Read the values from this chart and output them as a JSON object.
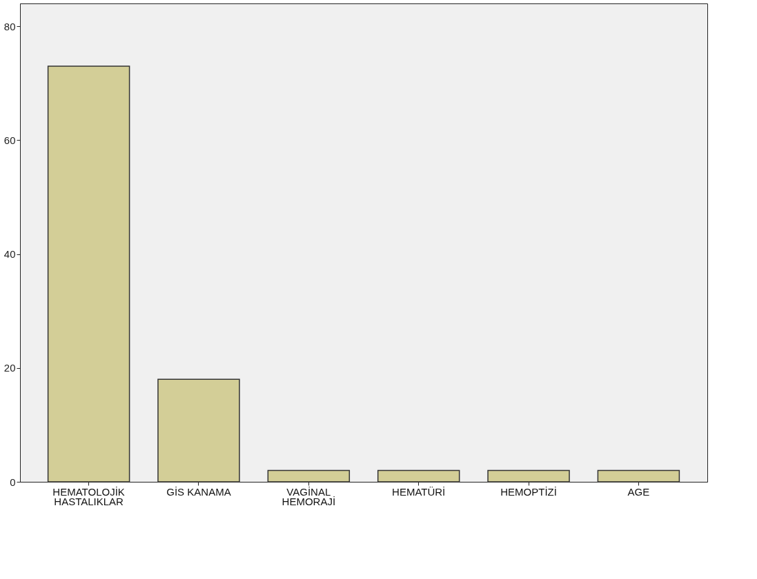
{
  "chart_data": {
    "type": "bar",
    "categories": [
      "HEMATOLOJİK\nHASTALIKLAR",
      "GİS KANAMA",
      "VAGİNAL\nHEMORAJİ",
      "HEMATÜRİ",
      "HEMOPTİZİ",
      "AGE"
    ],
    "values": [
      73,
      18,
      2,
      2,
      2,
      2
    ],
    "color": "#d3ce97",
    "ylim": [
      0,
      84
    ],
    "yticks": [
      0,
      20,
      40,
      60,
      80
    ],
    "grid": false
  }
}
